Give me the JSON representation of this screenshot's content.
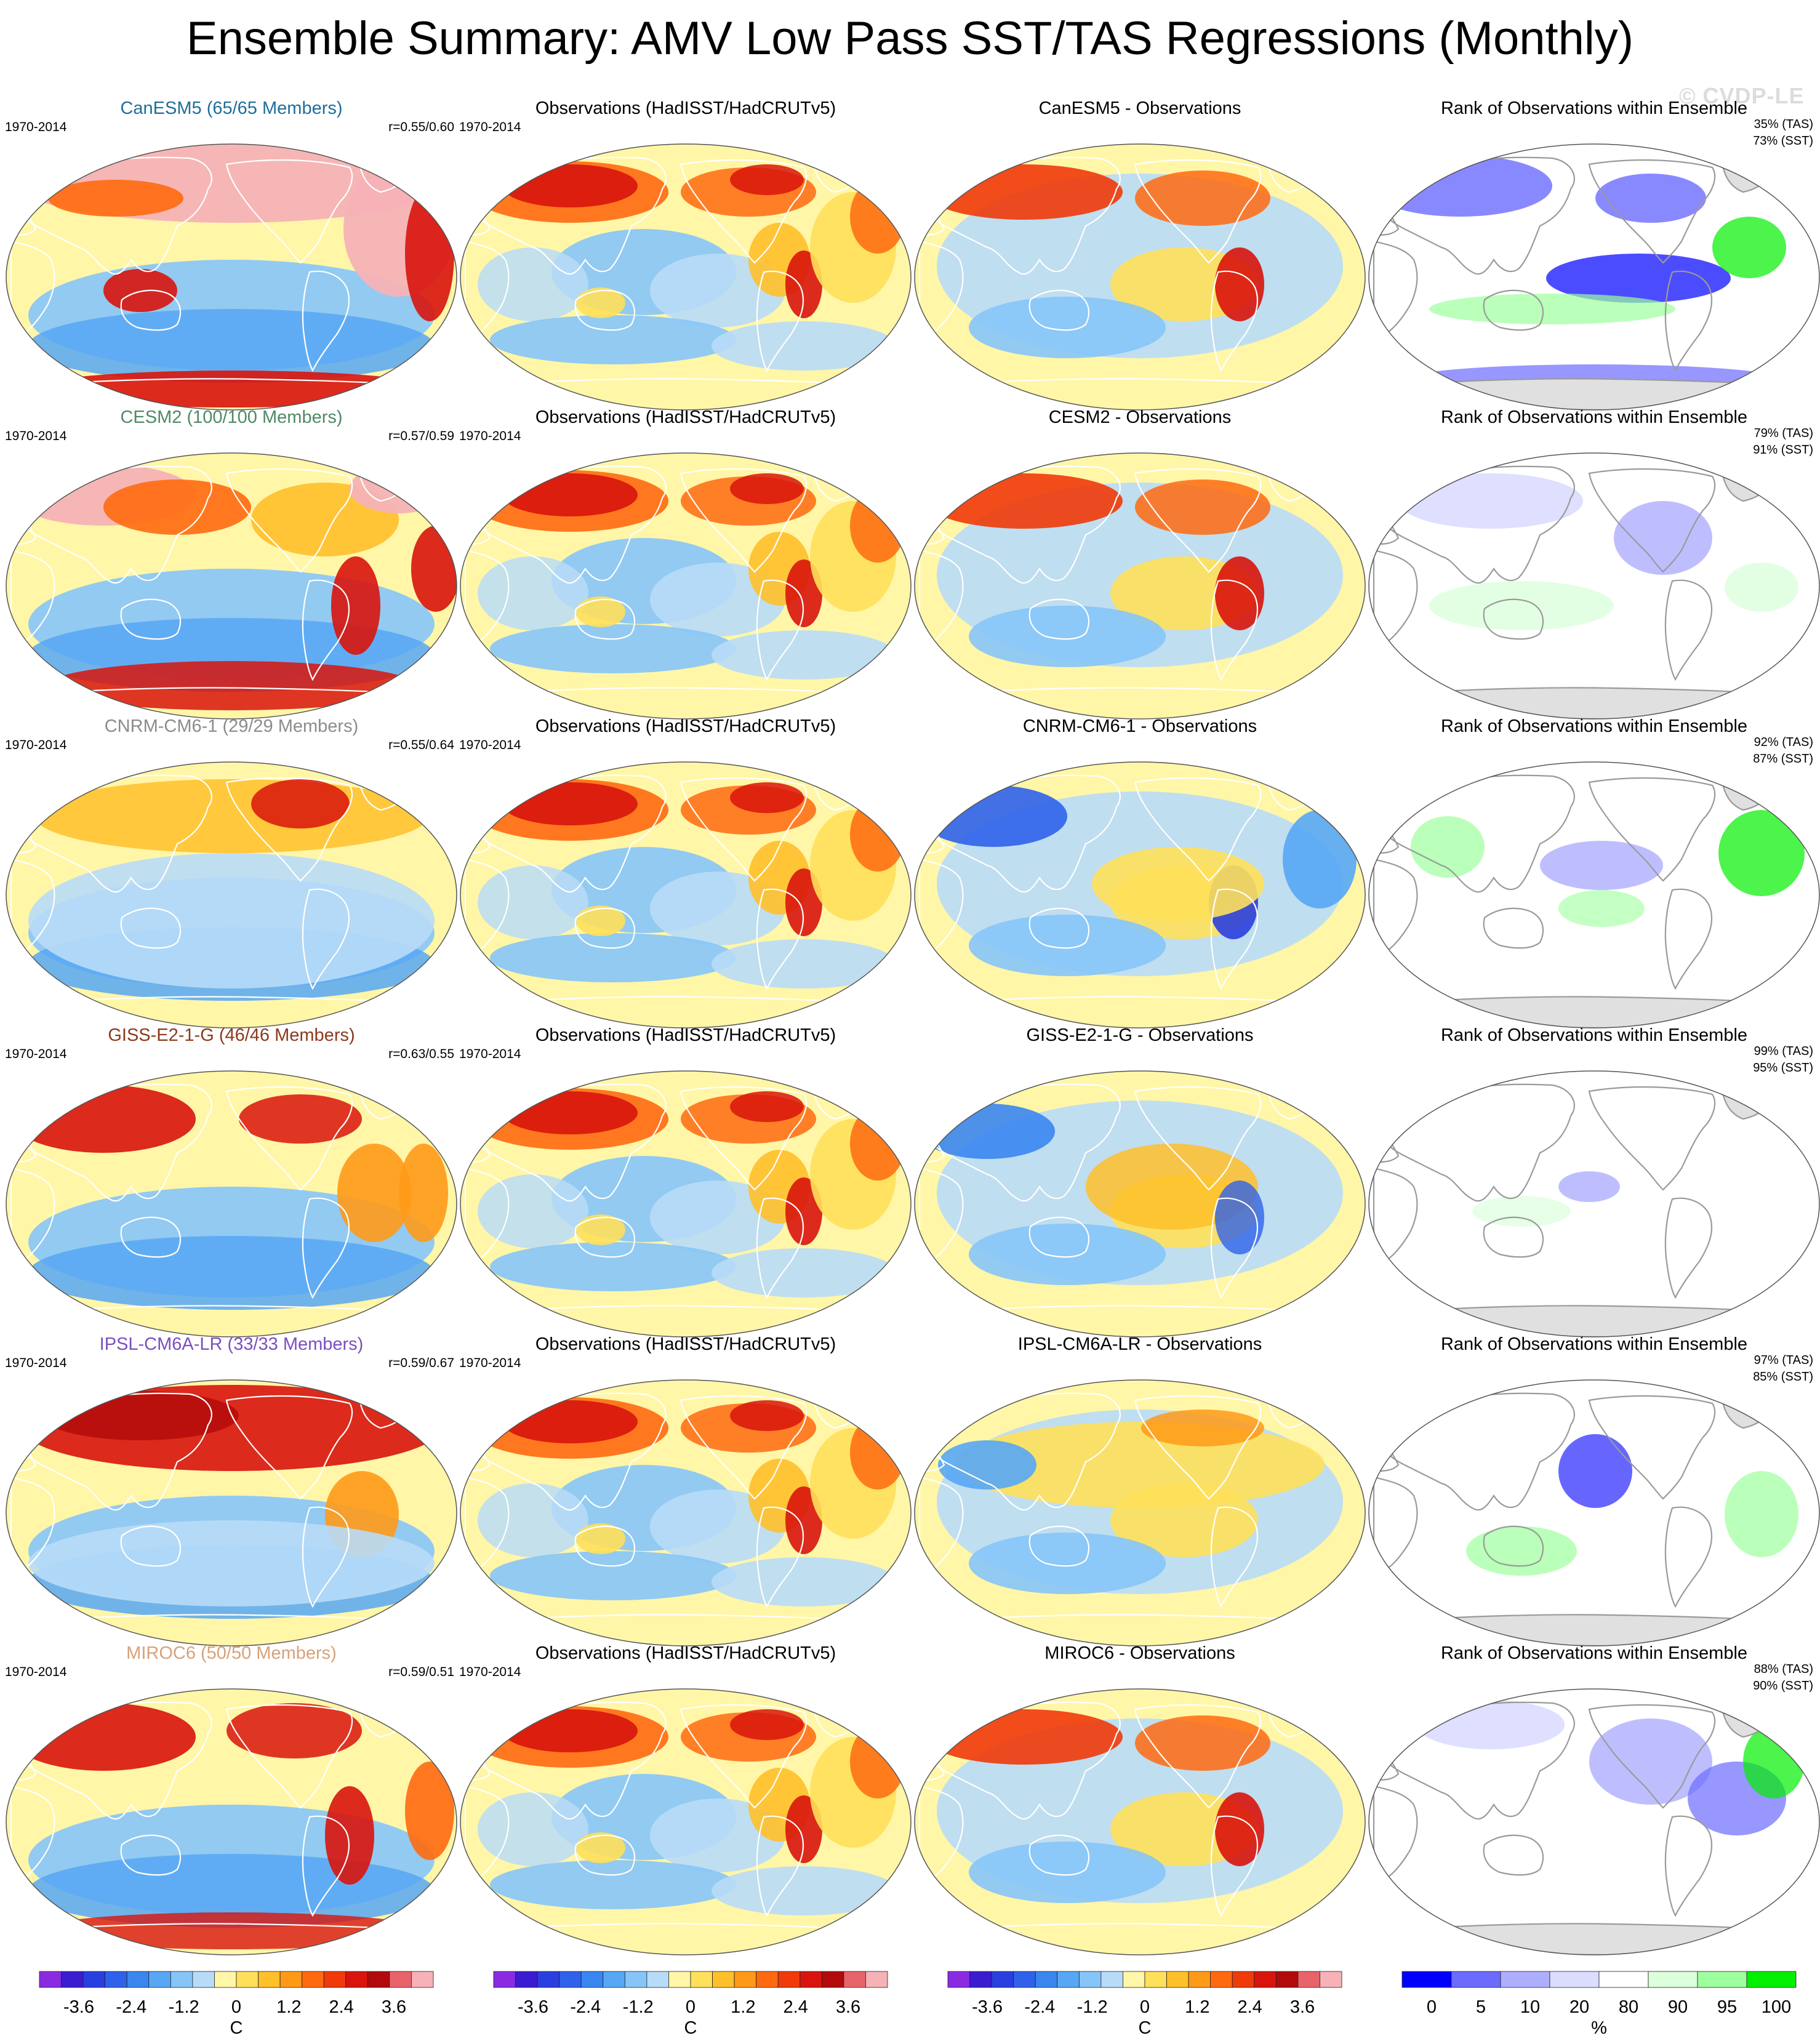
{
  "title": "Ensemble Summary: AMV Low Pass SST/TAS Regressions (Monthly)",
  "watermark": "© CVDP-LE",
  "obs_title": "Observations (HadISST/HadCRUTv5)",
  "rank_title": "Rank of Observations within Ensemble",
  "period": "1970-2014",
  "rows": [
    {
      "model_title": "CanESM5 (65/65 Members)",
      "model_color": "#1e6f9a",
      "corr": "r=0.55/0.60",
      "diff_title": "CanESM5 - Observations",
      "rank_tas": "35% (TAS)",
      "rank_sst": "73% (SST)",
      "style": "can"
    },
    {
      "model_title": "CESM2 (100/100 Members)",
      "model_color": "#4f8a66",
      "corr": "r=0.57/0.59",
      "diff_title": "CESM2 - Observations",
      "rank_tas": "79% (TAS)",
      "rank_sst": "91% (SST)",
      "style": "cesm"
    },
    {
      "model_title": "CNRM-CM6-1 (29/29 Members)",
      "model_color": "#8c8c8c",
      "corr": "r=0.55/0.64",
      "diff_title": "CNRM-CM6-1 - Observations",
      "rank_tas": "92% (TAS)",
      "rank_sst": "87% (SST)",
      "style": "cnrm"
    },
    {
      "model_title": "GISS-E2-1-G (46/46 Members)",
      "model_color": "#8b3a1c",
      "corr": "r=0.63/0.55",
      "diff_title": "GISS-E2-1-G - Observations",
      "rank_tas": "99% (TAS)",
      "rank_sst": "95% (SST)",
      "style": "giss"
    },
    {
      "model_title": "IPSL-CM6A-LR (33/33 Members)",
      "model_color": "#7b4fc0",
      "corr": "r=0.59/0.67",
      "diff_title": "IPSL-CM6A-LR - Observations",
      "rank_tas": "97% (TAS)",
      "rank_sst": "85% (SST)",
      "style": "ipsl"
    },
    {
      "model_title": "MIROC6 (50/50 Members)",
      "model_color": "#d6a27a",
      "corr": "r=0.59/0.51",
      "diff_title": "MIROC6 - Observations",
      "rank_tas": "88% (TAS)",
      "rank_sst": "90% (SST)",
      "style": "miroc"
    }
  ],
  "temp_colorbar": {
    "unit": "C",
    "ticks": [
      "-3.6",
      "-2.4",
      "-1.2",
      "0",
      "1.2",
      "2.4",
      "3.6"
    ],
    "tick_values": [
      -3.6,
      -2.4,
      -1.2,
      0,
      1.2,
      2.4,
      3.6
    ],
    "range": [
      -4.5,
      4.5
    ],
    "colors": [
      "#8a2be2",
      "#3b1cd1",
      "#2a3fe0",
      "#2f62ea",
      "#3a86f0",
      "#57a7f5",
      "#86c5f8",
      "#b8dcf7",
      "#fff6a8",
      "#ffe05a",
      "#ffc02a",
      "#ff9a18",
      "#ff6a10",
      "#f03a0a",
      "#d8140c",
      "#b20a0a",
      "#e8636a",
      "#f6b2b6"
    ]
  },
  "rank_colorbar": {
    "unit": "%",
    "ticks": [
      "0",
      "5",
      "10",
      "20",
      "80",
      "90",
      "95",
      "100"
    ],
    "colors": [
      "#0000ff",
      "#6b6bff",
      "#aeaeff",
      "#dcdcff",
      "#ffffff",
      "#dcffdc",
      "#9dff9d",
      "#00f000"
    ]
  }
}
